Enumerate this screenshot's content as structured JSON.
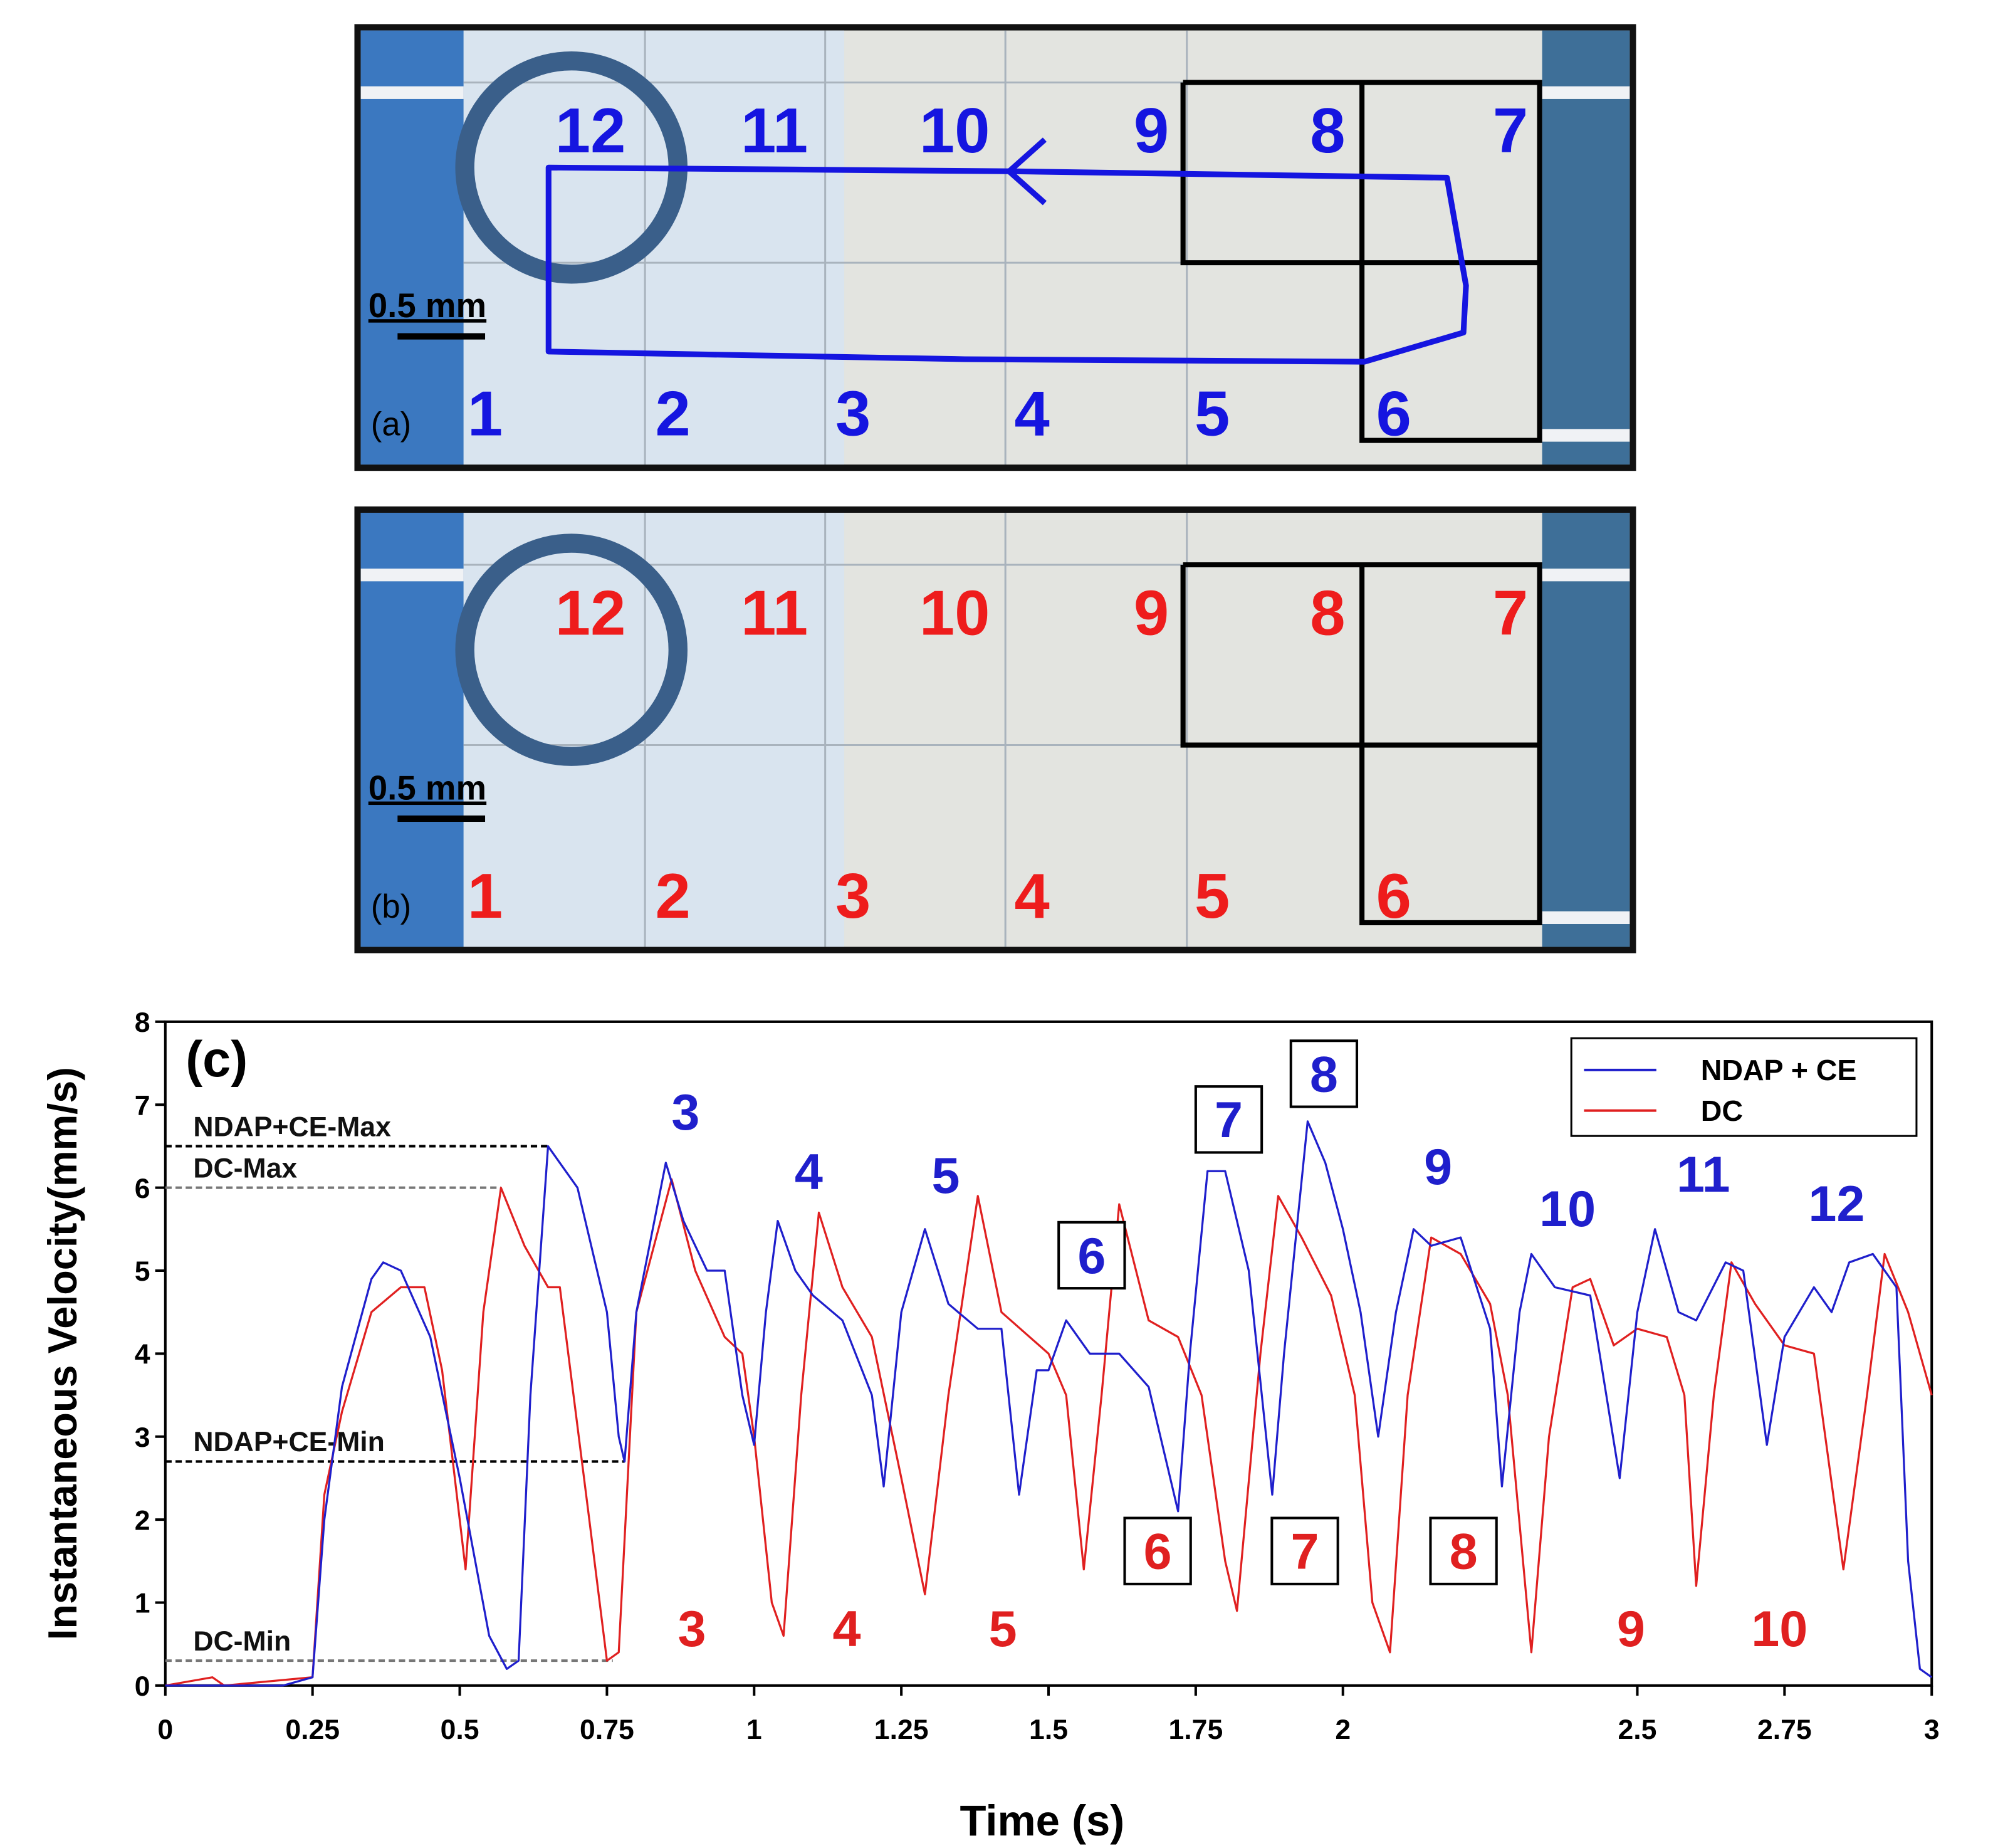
{
  "panels": [
    {
      "label": "(a)",
      "scale": "0.5 mm",
      "color": "#1515e0",
      "numbers": [
        "1",
        "2",
        "3",
        "4",
        "5",
        "6",
        "7",
        "8",
        "9",
        "10",
        "11",
        "12"
      ]
    },
    {
      "label": "(b)",
      "scale": "0.5 mm",
      "color": "#ee1c1c",
      "numbers": [
        "1",
        "2",
        "3",
        "4",
        "5",
        "6",
        "7",
        "8",
        "9",
        "10",
        "11",
        "12"
      ]
    }
  ],
  "chart_data": {
    "type": "line",
    "panel_label": "(c)",
    "x_label": "Time (s)",
    "y_label": "Instantaneous Velocity(mm/s)",
    "xlim": [
      0,
      3
    ],
    "ylim": [
      0,
      8
    ],
    "xticks": [
      0,
      0.25,
      0.5,
      0.75,
      1,
      1.25,
      1.5,
      1.75,
      2,
      2.5,
      2.75,
      3
    ],
    "yticks": [
      0,
      1,
      2,
      3,
      4,
      5,
      6,
      7,
      8
    ],
    "legend": "upper right",
    "series": [
      {
        "name": "NDAP + CE",
        "color": "#1f1fcc",
        "x": [
          0,
          0.2,
          0.25,
          0.27,
          0.3,
          0.35,
          0.37,
          0.4,
          0.45,
          0.5,
          0.55,
          0.58,
          0.6,
          0.62,
          0.65,
          0.7,
          0.75,
          0.77,
          0.78,
          0.8,
          0.85,
          0.88,
          0.92,
          0.95,
          0.98,
          1.0,
          1.02,
          1.04,
          1.07,
          1.1,
          1.15,
          1.2,
          1.22,
          1.25,
          1.29,
          1.33,
          1.38,
          1.42,
          1.45,
          1.48,
          1.5,
          1.53,
          1.57,
          1.62,
          1.67,
          1.72,
          1.74,
          1.77,
          1.8,
          1.84,
          1.88,
          1.9,
          1.94,
          1.97,
          2.0,
          2.03,
          2.06,
          2.09,
          2.12,
          2.15,
          2.2,
          2.25,
          2.27,
          2.3,
          2.32,
          2.36,
          2.42,
          2.47,
          2.5,
          2.53,
          2.57,
          2.6,
          2.65,
          2.68,
          2.72,
          2.75,
          2.8,
          2.83,
          2.86,
          2.9,
          2.94,
          2.96,
          2.98,
          3.0
        ],
        "values": [
          0,
          0,
          0.1,
          2,
          3.6,
          4.9,
          5.1,
          5.0,
          4.2,
          2.5,
          0.6,
          0.2,
          0.3,
          3.5,
          6.5,
          6.0,
          4.5,
          3.0,
          2.7,
          4.5,
          6.3,
          5.6,
          5.0,
          5.0,
          3.5,
          2.9,
          4.5,
          5.6,
          5.0,
          4.7,
          4.4,
          3.5,
          2.4,
          4.5,
          5.5,
          4.6,
          4.3,
          4.3,
          2.3,
          3.8,
          3.8,
          4.4,
          4.0,
          4.0,
          3.6,
          2.1,
          4.0,
          6.2,
          6.2,
          5.0,
          2.3,
          4.0,
          6.8,
          6.3,
          5.5,
          4.5,
          3.0,
          4.5,
          5.5,
          5.3,
          5.4,
          4.3,
          2.4,
          4.5,
          5.2,
          4.8,
          4.7,
          2.5,
          4.5,
          5.5,
          4.5,
          4.4,
          5.1,
          5.0,
          2.9,
          4.2,
          4.8,
          4.5,
          5.1,
          5.2,
          4.8,
          1.5,
          0.2,
          0.1
        ]
      },
      {
        "name": "DC",
        "color": "#e02020",
        "x": [
          0,
          0.08,
          0.1,
          0.25,
          0.27,
          0.3,
          0.35,
          0.4,
          0.44,
          0.47,
          0.51,
          0.54,
          0.57,
          0.61,
          0.65,
          0.67,
          0.72,
          0.75,
          0.77,
          0.8,
          0.86,
          0.9,
          0.95,
          0.98,
          1.0,
          1.03,
          1.05,
          1.08,
          1.11,
          1.15,
          1.2,
          1.25,
          1.29,
          1.33,
          1.38,
          1.42,
          1.5,
          1.53,
          1.56,
          1.59,
          1.62,
          1.67,
          1.72,
          1.76,
          1.8,
          1.82,
          1.86,
          1.89,
          1.93,
          1.98,
          2.02,
          2.05,
          2.08,
          2.11,
          2.15,
          2.2,
          2.25,
          2.28,
          2.32,
          2.35,
          2.39,
          2.42,
          2.46,
          2.5,
          2.55,
          2.58,
          2.6,
          2.63,
          2.66,
          2.7,
          2.75,
          2.8,
          2.85,
          2.89,
          2.92,
          2.96,
          3.0
        ],
        "values": [
          0,
          0.1,
          0,
          0.1,
          2.3,
          3.3,
          4.5,
          4.8,
          4.8,
          3.8,
          1.4,
          4.5,
          6.0,
          5.3,
          4.8,
          4.8,
          2.0,
          0.3,
          0.4,
          4.5,
          6.1,
          5.0,
          4.2,
          4.0,
          3.0,
          1.0,
          0.6,
          3.5,
          5.7,
          4.8,
          4.2,
          2.5,
          1.1,
          3.5,
          5.9,
          4.5,
          4.0,
          3.5,
          1.4,
          3.5,
          5.8,
          4.4,
          4.2,
          3.5,
          1.5,
          0.9,
          4.0,
          5.9,
          5.4,
          4.7,
          3.5,
          1.0,
          0.4,
          3.5,
          5.4,
          5.2,
          4.6,
          3.5,
          0.4,
          3.0,
          4.8,
          4.9,
          4.1,
          4.3,
          4.2,
          3.5,
          1.2,
          3.5,
          5.1,
          4.6,
          4.1,
          4.0,
          1.4,
          3.5,
          5.2,
          4.5,
          3.5
        ]
      }
    ],
    "reference_lines": [
      {
        "label": "NDAP+CE-Max",
        "y": 6.5,
        "x_end": 0.65,
        "color": "#000000"
      },
      {
        "label": "DC-Max",
        "y": 6.0,
        "x_end": 0.57,
        "color": "#777777"
      },
      {
        "label": "NDAP+CE-Min",
        "y": 2.7,
        "x_end": 0.78,
        "color": "#000000"
      },
      {
        "label": "DC-Min",
        "y": 0.3,
        "x_end": 0.76,
        "color": "#777777"
      }
    ],
    "annotations": [
      {
        "text": "3",
        "series": 0
      },
      {
        "text": "4",
        "series": 0
      },
      {
        "text": "5",
        "series": 0
      },
      {
        "text": "6",
        "series": 0,
        "boxed": true
      },
      {
        "text": "7",
        "series": 0,
        "boxed": true
      },
      {
        "text": "8",
        "series": 0,
        "boxed": true
      },
      {
        "text": "9",
        "series": 0
      },
      {
        "text": "10",
        "series": 0
      },
      {
        "text": "11",
        "series": 0
      },
      {
        "text": "12",
        "series": 0
      },
      {
        "text": "3",
        "series": 1
      },
      {
        "text": "4",
        "series": 1
      },
      {
        "text": "5",
        "series": 1
      },
      {
        "text": "6",
        "series": 1,
        "boxed": true
      },
      {
        "text": "7",
        "series": 1,
        "boxed": true
      },
      {
        "text": "8",
        "series": 1,
        "boxed": true
      },
      {
        "text": "9",
        "series": 1
      },
      {
        "text": "10",
        "series": 1
      }
    ]
  }
}
